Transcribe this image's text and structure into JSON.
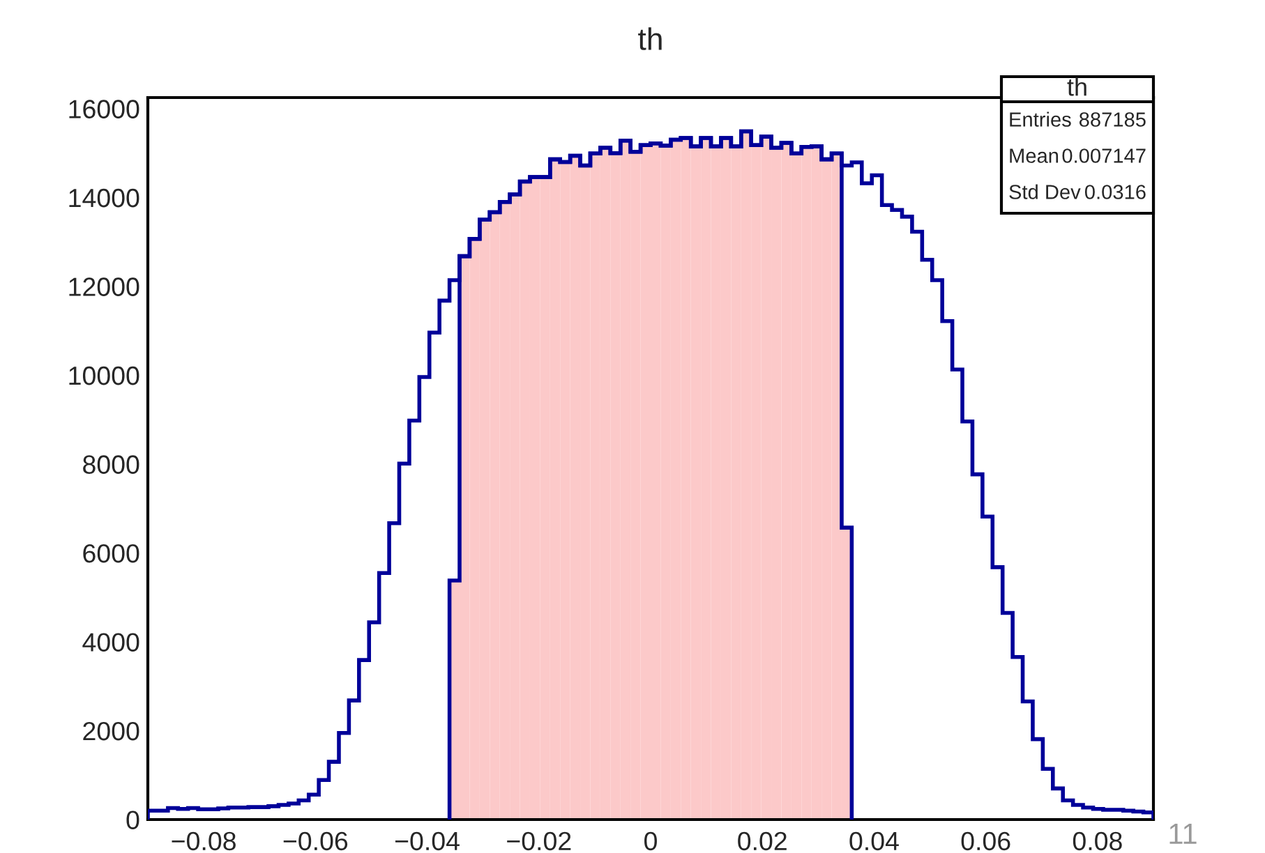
{
  "chart_data": {
    "type": "histogram",
    "title": "th",
    "bins": [
      -0.09,
      -0.0882,
      -0.0864,
      -0.0846,
      -0.0828,
      -0.081,
      -0.0792,
      -0.0774,
      -0.0756,
      -0.0738,
      -0.072,
      -0.0702,
      -0.0684,
      -0.0666,
      -0.0648,
      -0.063,
      -0.0612,
      -0.0594,
      -0.0576,
      -0.0558,
      -0.054,
      -0.0522,
      -0.0504,
      -0.0486,
      -0.0468,
      -0.045,
      -0.0432,
      -0.0414,
      -0.0396,
      -0.0378,
      -0.036,
      -0.0342,
      -0.0324,
      -0.0306,
      -0.0288,
      -0.027,
      -0.0252,
      -0.0234,
      -0.0216,
      -0.0198,
      -0.018,
      -0.0162,
      -0.0144,
      -0.0126,
      -0.0108,
      -0.009,
      -0.0072,
      -0.0054,
      -0.0036,
      -0.0018,
      0,
      0.0018,
      0.0036,
      0.0054,
      0.0072,
      0.009,
      0.0108,
      0.0126,
      0.0144,
      0.0162,
      0.018,
      0.0198,
      0.0216,
      0.0234,
      0.0252,
      0.027,
      0.0288,
      0.0306,
      0.0324,
      0.0342,
      0.036,
      0.0378,
      0.0396,
      0.0414,
      0.0432,
      0.045,
      0.0468,
      0.0486,
      0.0504,
      0.0522,
      0.054,
      0.0558,
      0.0576,
      0.0594,
      0.0612,
      0.063,
      0.0648,
      0.0666,
      0.0684,
      0.0702,
      0.072,
      0.0738,
      0.0756,
      0.0774,
      0.0792,
      0.081,
      0.0828,
      0.0846,
      0.0864,
      0.0882,
      0.09
    ],
    "series": [
      {
        "color": "#000099",
        "values": [
          200,
          200,
          260,
          240,
          260,
          230,
          230,
          250,
          270,
          270,
          280,
          280,
          300,
          330,
          360,
          430,
          560,
          890,
          1300,
          1950,
          2680,
          3590,
          4440,
          5550,
          6670,
          8010,
          8980,
          9960,
          10960,
          11680,
          12140,
          12680,
          13070,
          13500,
          13670,
          13900,
          14070,
          14360,
          14460,
          14460,
          14860,
          14800,
          14940,
          14720,
          14990,
          15120,
          15000,
          15280,
          15030,
          15180,
          15220,
          15170,
          15300,
          15340,
          15150,
          15340,
          15150,
          15340,
          15150,
          15490,
          15180,
          15370,
          15120,
          15230,
          14990,
          15140,
          15150,
          14860,
          14990,
          14720,
          14790,
          14320,
          14500,
          13830,
          13720,
          13570,
          13230,
          12600,
          12140,
          11220,
          10130,
          8960,
          7770,
          6820,
          5680,
          4650,
          3660,
          2660,
          1810,
          1140,
          700,
          430,
          330,
          270,
          240,
          220,
          220,
          200,
          180,
          160
        ]
      },
      {
        "color": "#fcc9c9",
        "values": [
          null,
          null,
          null,
          null,
          null,
          null,
          null,
          null,
          null,
          null,
          null,
          null,
          null,
          null,
          null,
          null,
          null,
          null,
          null,
          null,
          null,
          null,
          null,
          null,
          null,
          null,
          null,
          null,
          null,
          null,
          5380,
          12680,
          13070,
          13500,
          13670,
          13900,
          14070,
          14360,
          14460,
          14460,
          14860,
          14800,
          14940,
          14720,
          14990,
          15120,
          15000,
          15280,
          15030,
          15180,
          15220,
          15170,
          15300,
          15340,
          15150,
          15340,
          15150,
          15340,
          15150,
          15490,
          15180,
          15370,
          15120,
          15230,
          14990,
          15140,
          15150,
          14860,
          14990,
          6570,
          null,
          null,
          null,
          null,
          null,
          null,
          null,
          null,
          null,
          null,
          null,
          null,
          null,
          null,
          null,
          null,
          null,
          null,
          null,
          null,
          null,
          null,
          null,
          null,
          null,
          null,
          null,
          null,
          null,
          null
        ]
      }
    ],
    "xlim": [
      -0.09,
      0.09
    ],
    "xticks": [
      {
        "value": -0.08,
        "label": "−0.08"
      },
      {
        "value": -0.06,
        "label": "−0.06"
      },
      {
        "value": -0.04,
        "label": "−0.04"
      },
      {
        "value": -0.02,
        "label": "−0.02"
      },
      0,
      0.02,
      0.04,
      0.06,
      0.08
    ],
    "ylim": [
      0,
      16250
    ],
    "yticks": [
      0,
      2000,
      4000,
      6000,
      8000,
      10000,
      12000,
      14000,
      16000
    ],
    "grid": false,
    "annotations": [
      "th",
      "Entries",
      "887185",
      "Mean",
      "0.007147",
      "Std Dev",
      "0.0316",
      "11"
    ]
  }
}
